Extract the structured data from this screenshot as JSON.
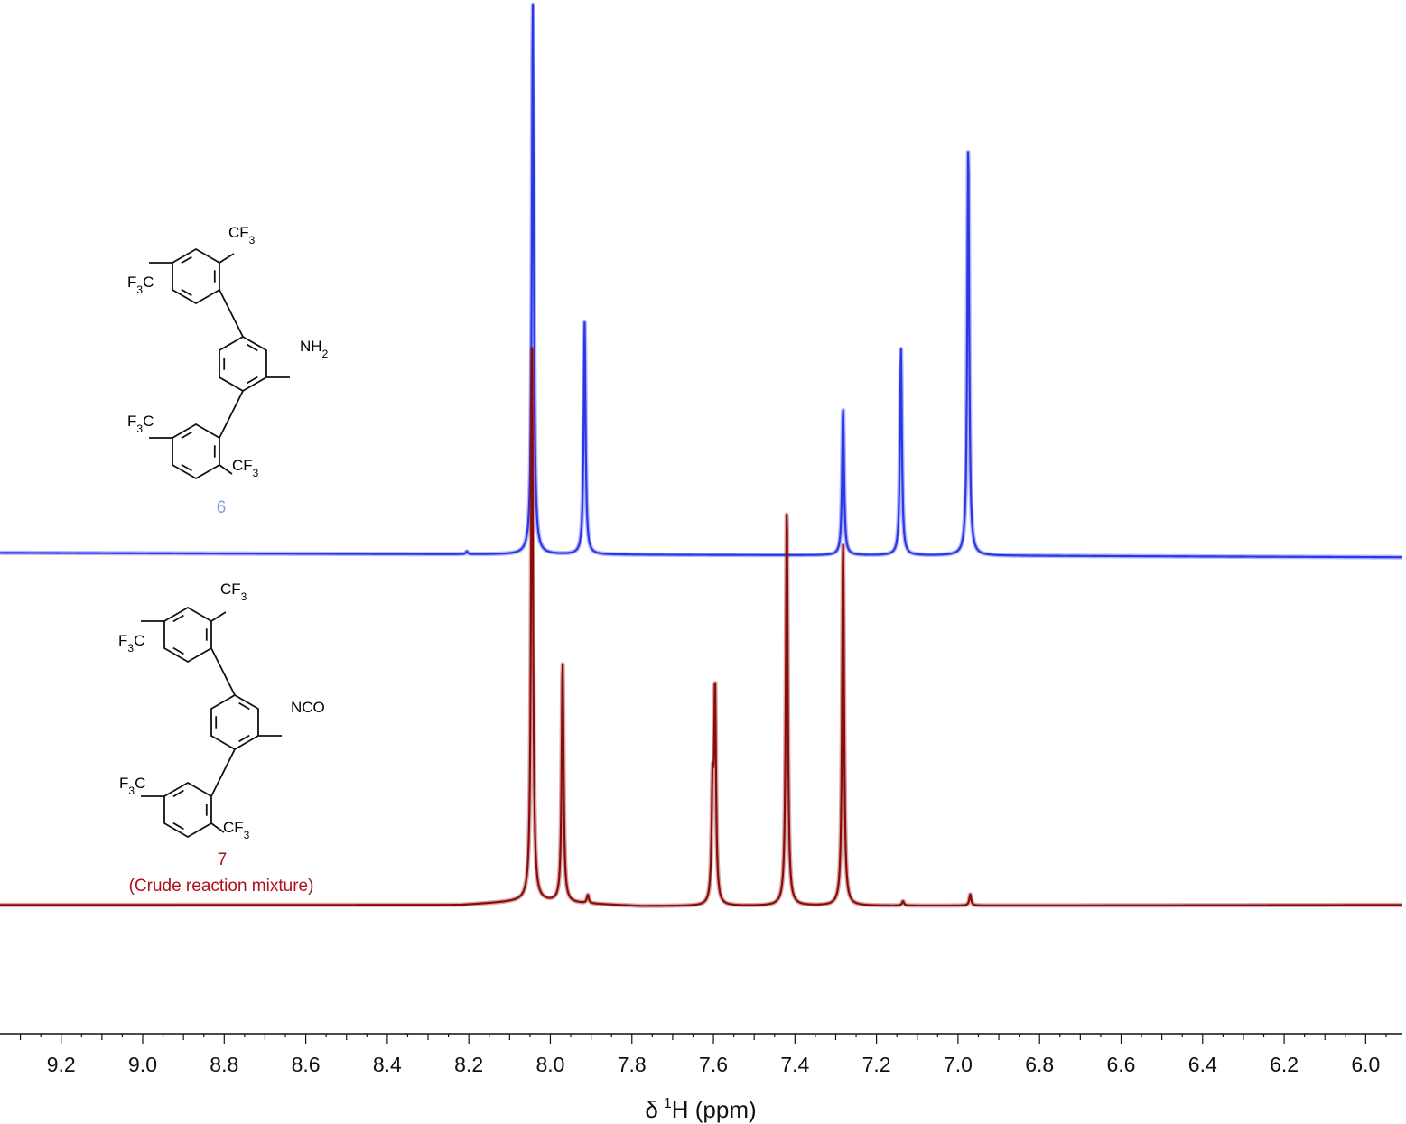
{
  "chart_data": {
    "type": "line",
    "title": "",
    "xlabel": "δ ¹H (ppm)",
    "xlabel_parts": {
      "symbol": "δ",
      "sup": "1",
      "rest": "H (ppm)"
    },
    "ylabel": "",
    "xlim": [
      9.35,
      5.91
    ],
    "x_reversed": true,
    "grid": false,
    "x_ticks": [
      "9.2",
      "9.0",
      "8.8",
      "8.6",
      "8.4",
      "8.2",
      "8.0",
      "7.8",
      "7.6",
      "7.4",
      "7.2",
      "7.0",
      "6.8",
      "6.6",
      "6.4",
      "6.2",
      "6.0"
    ],
    "series": [
      {
        "name": "6",
        "color": "#2b36e8",
        "baseline": 0,
        "baseline_tilt": [
          [
            9.35,
            0.6
          ],
          [
            8.06,
            0.3
          ],
          [
            6.96,
            0.1
          ],
          [
            5.91,
            -0.2
          ]
        ],
        "peaks": [
          {
            "x": 8.205,
            "y": 0.5
          },
          {
            "x": 8.043,
            "y": 100
          },
          {
            "x": 7.916,
            "y": 42.0
          },
          {
            "x": 7.282,
            "y": 26.5
          },
          {
            "x": 7.14,
            "y": 37.5
          },
          {
            "x": 6.975,
            "y": 74.0
          }
        ]
      },
      {
        "name": "7",
        "note": "(Crude reaction mixture)",
        "color": "#8b0a0a",
        "baseline": 0,
        "baseline_tilt": [
          [
            9.35,
            0.6
          ],
          [
            8.22,
            0.6
          ],
          [
            8.06,
            1.3
          ],
          [
            7.78,
            0.4
          ],
          [
            5.91,
            0.6
          ]
        ],
        "peaks": [
          {
            "x": 8.045,
            "y": 100
          },
          {
            "x": 7.97,
            "y": 43.5
          },
          {
            "x": 7.908,
            "y": 1.5
          },
          {
            "x": 7.602,
            "y": 19.0
          },
          {
            "x": 7.596,
            "y": 38.0
          },
          {
            "x": 7.42,
            "y": 72.0
          },
          {
            "x": 7.282,
            "y": 66.0
          },
          {
            "x": 7.135,
            "y": 0.8
          },
          {
            "x": 6.97,
            "y": 2.0
          }
        ]
      }
    ]
  },
  "structures": {
    "compound_6": {
      "number": "6",
      "number_color": "#7b9fdc",
      "cf3_top": "CF",
      "cf3_top_sub": "3",
      "cf3_left_top": "F",
      "cf3_left_top_sub": "3",
      "cf3_left_top_c": "C",
      "amine": "NH",
      "amine_sub": "2",
      "cf3_left_bottom": "F",
      "cf3_left_bottom_sub": "3",
      "cf3_left_bottom_c": "C",
      "cf3_bottom": "CF",
      "cf3_bottom_sub": "3"
    },
    "compound_7": {
      "number": "7",
      "note": "(Crude reaction mixture)",
      "label_color": "#b0101a",
      "cf3_top": "CF",
      "cf3_top_sub": "3",
      "cf3_left_top": "F",
      "cf3_left_top_sub": "3",
      "cf3_left_top_c": "C",
      "isocyanate": "NCO",
      "cf3_left_bottom": "F",
      "cf3_left_bottom_sub": "3",
      "cf3_left_bottom_c": "C",
      "cf3_bottom": "CF",
      "cf3_bottom_sub": "3"
    }
  }
}
